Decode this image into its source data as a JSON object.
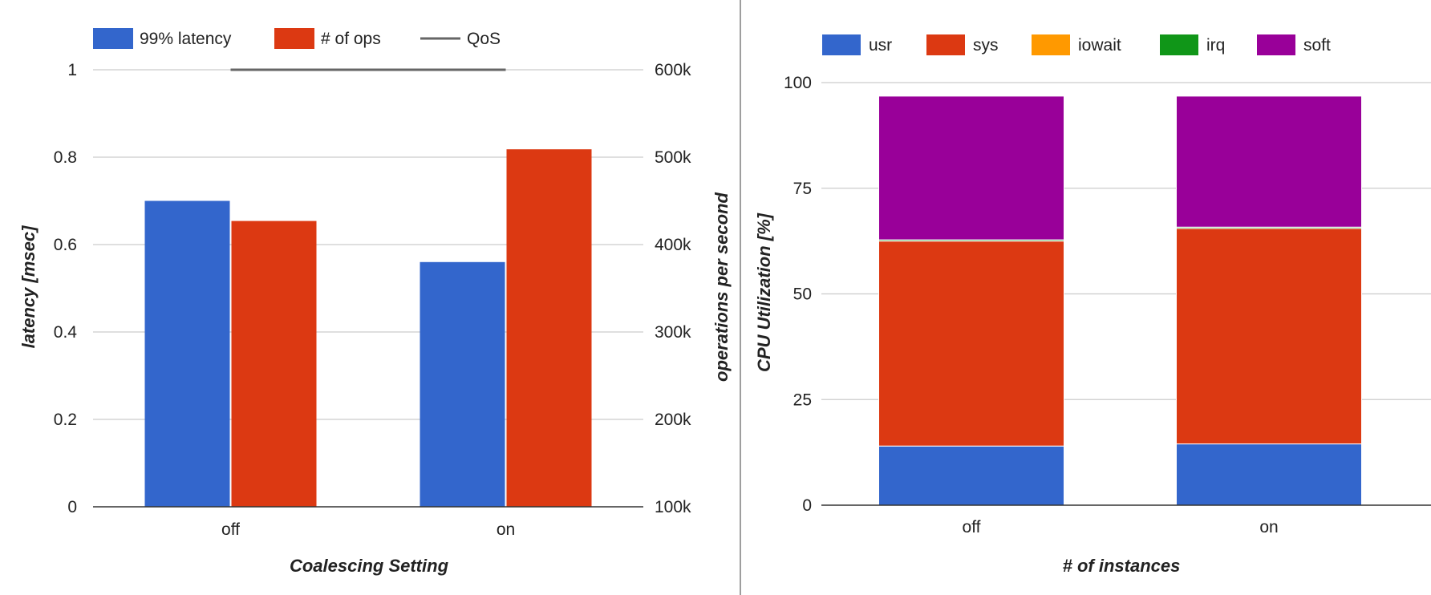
{
  "chart_data": [
    {
      "type": "bar",
      "title": "",
      "xlabel": "Coalescing Setting",
      "ylabel": "latency [msec]",
      "y2label": "operations per second",
      "categories": [
        "off",
        "on"
      ],
      "ylim": [
        0,
        1
      ],
      "y2lim": [
        100000,
        600000
      ],
      "yticks": [
        "0",
        "0.2",
        "0.4",
        "0.6",
        "0.8",
        "1"
      ],
      "y2ticks": [
        "100k",
        "200k",
        "300k",
        "400k",
        "500k",
        "600k"
      ],
      "grid": true,
      "legend_position": "top",
      "series": [
        {
          "name": "99% latency",
          "axis": "left",
          "color": "#3366cc",
          "values": [
            0.7,
            0.56
          ]
        },
        {
          "name": "# of ops",
          "axis": "right",
          "color": "#dc3912",
          "values": [
            427000,
            509000
          ]
        }
      ],
      "lines": [
        {
          "name": "QoS",
          "axis": "left",
          "color": "#666666",
          "value": 1
        }
      ]
    },
    {
      "type": "bar",
      "stacked": true,
      "title": "",
      "xlabel": "# of instances",
      "ylabel": "CPU Utilization [%]",
      "categories": [
        "off",
        "on"
      ],
      "ylim": [
        0,
        100
      ],
      "yticks": [
        "0",
        "25",
        "50",
        "75",
        "100"
      ],
      "grid": true,
      "legend_position": "top",
      "series": [
        {
          "name": "usr",
          "color": "#3366cc",
          "values": [
            14,
            14.5
          ]
        },
        {
          "name": "sys",
          "color": "#dc3912",
          "values": [
            48.5,
            51
          ]
        },
        {
          "name": "iowait",
          "color": "#ff9900",
          "values": [
            0,
            0
          ]
        },
        {
          "name": "irq",
          "color": "#109618",
          "values": [
            0.3,
            0.3
          ]
        },
        {
          "name": "soft",
          "color": "#990099",
          "values": [
            34,
            31
          ]
        }
      ]
    }
  ]
}
